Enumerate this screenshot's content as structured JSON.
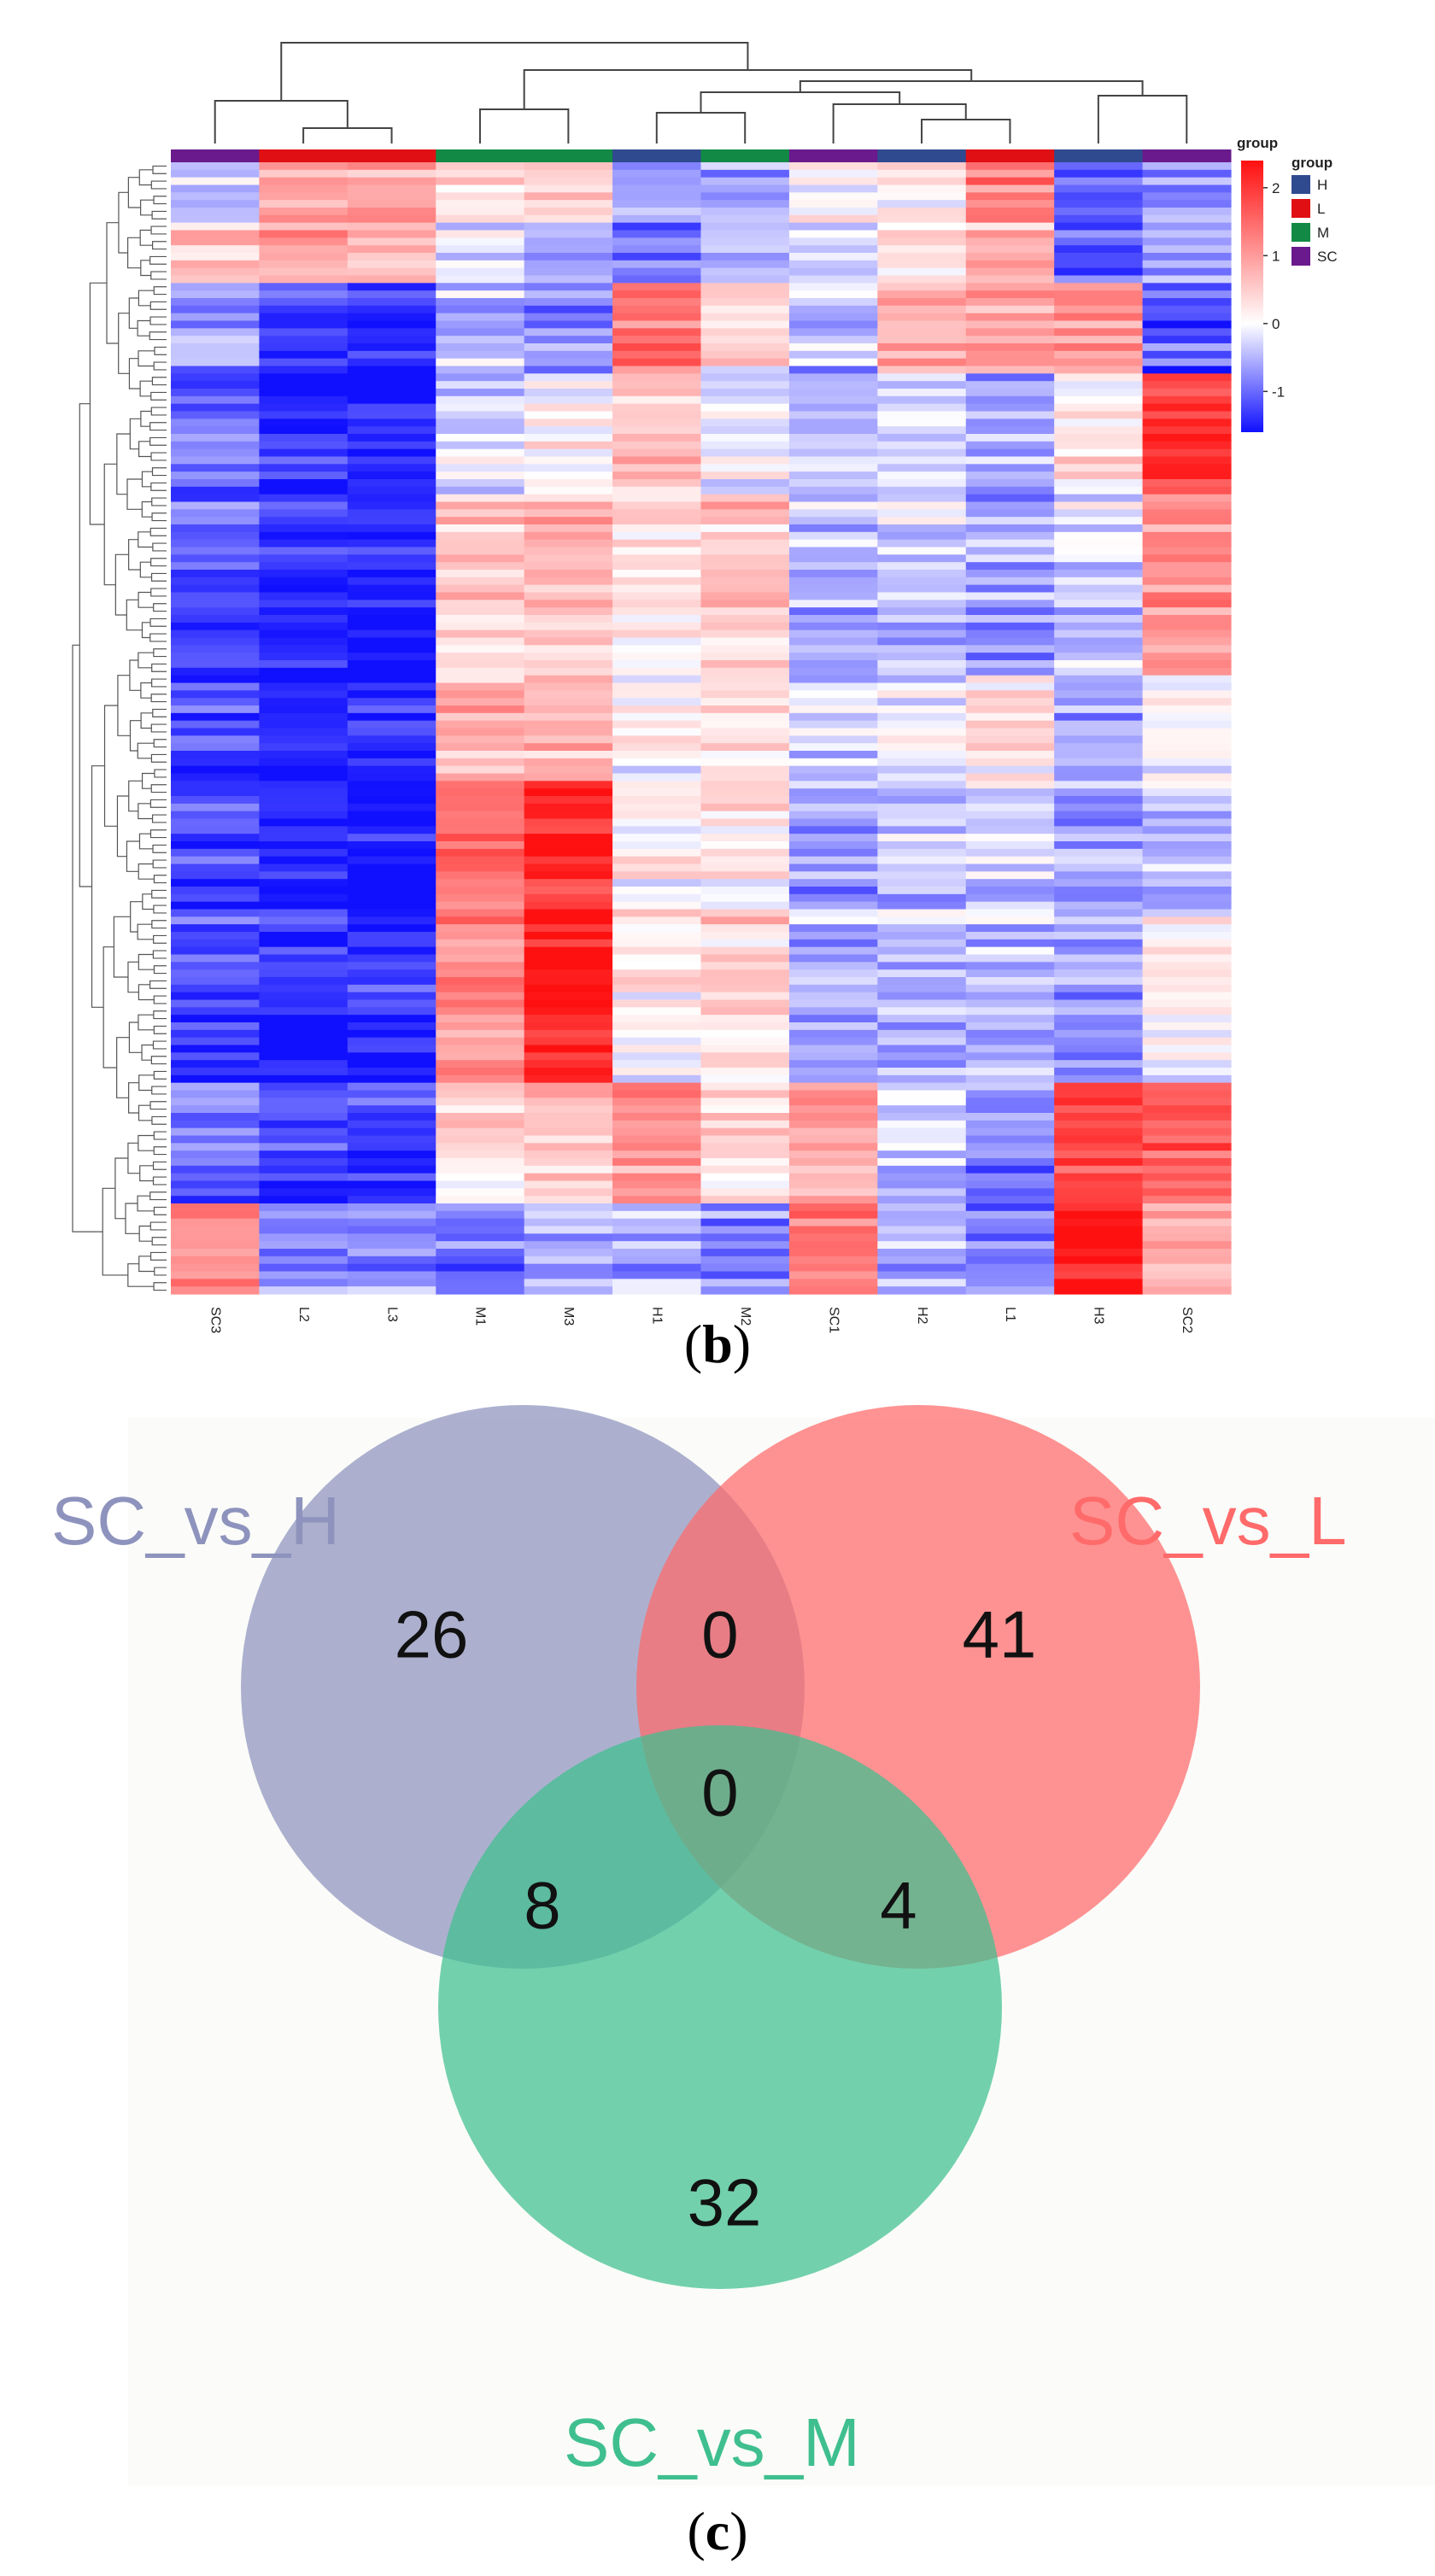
{
  "chart_data": [
    {
      "type": "heatmap",
      "panel_label_open": "(",
      "panel_label_letter": "b",
      "panel_label_close": ")",
      "columns": [
        "SC3",
        "L2",
        "L3",
        "M1",
        "M3",
        "H1",
        "M2",
        "SC1",
        "H2",
        "L1",
        "H3",
        "SC2"
      ],
      "column_groups": [
        "SC",
        "L",
        "L",
        "M",
        "M",
        "H",
        "M",
        "SC",
        "H",
        "L",
        "H",
        "SC"
      ],
      "group_legend": {
        "title": "group",
        "annotation_label": "group",
        "items": [
          {
            "name": "H",
            "color": "#2F4A8F"
          },
          {
            "name": "L",
            "color": "#E00F14"
          },
          {
            "name": "M",
            "color": "#128A45"
          },
          {
            "name": "SC",
            "color": "#6A1A8C"
          }
        ]
      },
      "color_scale": {
        "low_color": "#1010FF",
        "mid_color": "#FFFFFF",
        "high_color": "#FF1010",
        "range": [
          -1.6,
          2.4
        ],
        "ticks": [
          2,
          1,
          0,
          -1
        ]
      },
      "row_block_profiles": [
        {
          "rows": 8,
          "values": [
            -0.4,
            0.9,
            0.8,
            0.3,
            0.4,
            -0.7,
            -0.6,
            0.1,
            0.2,
            1.2,
            -1.0,
            -0.8
          ]
        },
        {
          "rows": 8,
          "values": [
            0.6,
            0.9,
            0.7,
            -0.2,
            -0.5,
            -0.9,
            -0.4,
            -0.2,
            0.3,
            0.8,
            -1.0,
            -0.6
          ]
        },
        {
          "rows": 12,
          "values": [
            -0.6,
            -1.4,
            -1.4,
            -0.5,
            -0.9,
            1.4,
            0.2,
            -0.5,
            0.8,
            0.9,
            1.0,
            -1.1
          ]
        },
        {
          "rows": 16,
          "values": [
            -1.0,
            -1.5,
            -1.5,
            -0.3,
            0.1,
            0.6,
            0.0,
            -0.4,
            -0.3,
            -0.6,
            0.2,
            2.0
          ]
        },
        {
          "rows": 24,
          "values": [
            -1.1,
            -1.5,
            -1.5,
            0.5,
            0.7,
            0.2,
            0.5,
            -0.5,
            -0.4,
            -0.6,
            -0.3,
            1.1
          ]
        },
        {
          "rows": 14,
          "values": [
            -1.1,
            -1.5,
            -1.5,
            0.7,
            0.8,
            0.1,
            0.3,
            -0.2,
            -0.1,
            0.3,
            -0.5,
            0.1
          ]
        },
        {
          "rows": 18,
          "values": [
            -1.2,
            -1.5,
            -1.5,
            1.5,
            2.2,
            0.2,
            0.3,
            -0.6,
            -0.3,
            -0.2,
            -0.6,
            -0.3
          ]
        },
        {
          "rows": 22,
          "values": [
            -1.2,
            -1.4,
            -1.4,
            1.1,
            2.3,
            0.1,
            0.4,
            -0.6,
            -0.5,
            -0.5,
            -0.7,
            0.1
          ]
        },
        {
          "rows": 16,
          "values": [
            -1.1,
            -1.4,
            -1.3,
            0.3,
            0.5,
            1.1,
            0.3,
            0.8,
            -0.4,
            -0.8,
            1.8,
            1.6
          ]
        },
        {
          "rows": 12,
          "values": [
            1.2,
            -0.8,
            -0.8,
            -0.9,
            -0.5,
            -0.6,
            -0.8,
            1.3,
            -0.6,
            -0.9,
            2.4,
            0.7
          ]
        }
      ]
    },
    {
      "type": "venn",
      "panel_label_open": "(",
      "panel_label_letter": "c",
      "panel_label_close": ")",
      "sets": [
        {
          "name": "SC_vs_H",
          "color": "#8E93BD"
        },
        {
          "name": "SC_vs_L",
          "color": "#FF6A6A"
        },
        {
          "name": "SC_vs_M",
          "color": "#3FBF8F"
        }
      ],
      "counts": {
        "only_H": 26,
        "only_L": 41,
        "only_M": 32,
        "H_and_L": 0,
        "H_and_M": 8,
        "L_and_M": 4,
        "all_three": 0
      }
    }
  ]
}
